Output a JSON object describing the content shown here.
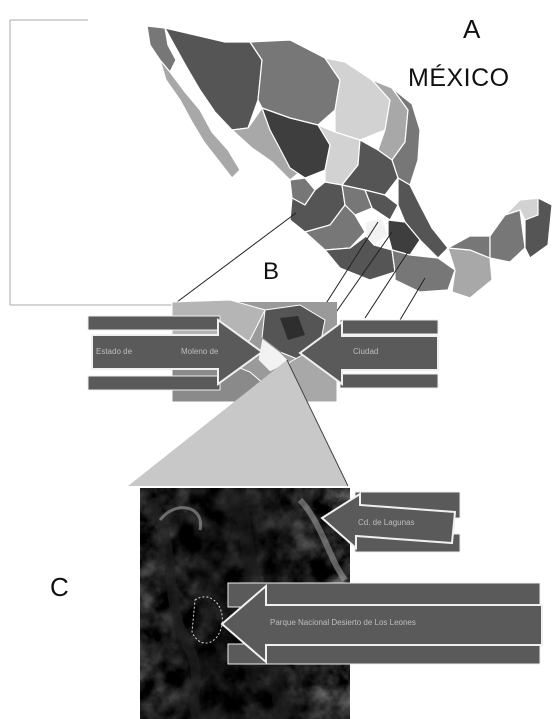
{
  "panels": {
    "a_label": "A",
    "country_label": "MÉXICO",
    "b_label": "B",
    "c_label": "C"
  },
  "arrows": {
    "estado": "Estado de",
    "pueblo": "Moleno de",
    "cdmx": "Ciudad",
    "lagunas": "Cd. de Lagunas",
    "parque": "Parque Nacional Desierto de Los Leones"
  },
  "colors": {
    "map_dark": "#555555",
    "map_mid": "#777777",
    "map_light": "#a8a8a8",
    "map_pale": "#d2d2d2",
    "arrow_fill": "#5a5a5a",
    "funnel": "#c8c8c8"
  }
}
